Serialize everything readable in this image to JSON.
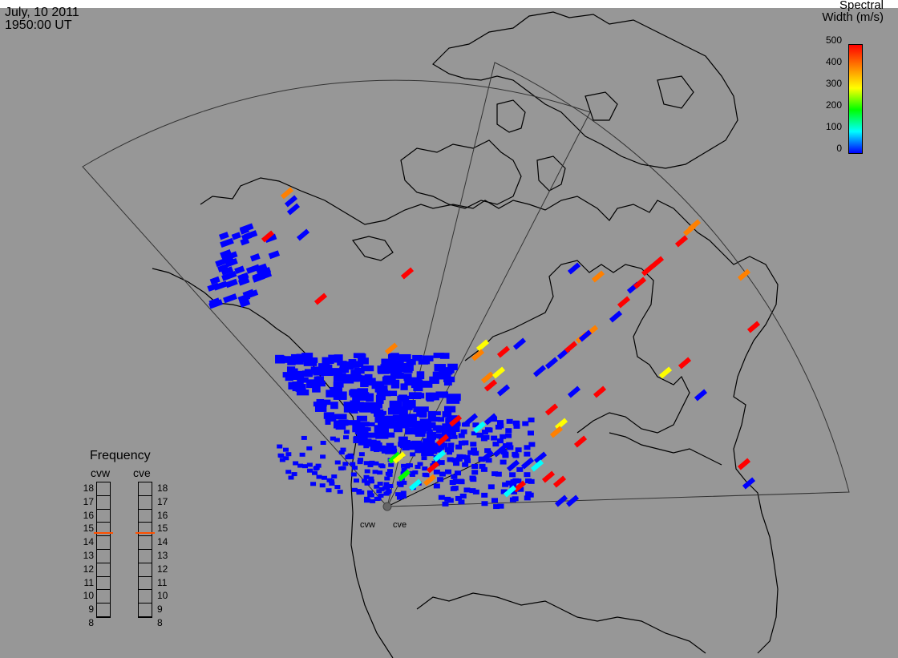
{
  "header": {
    "date": "July, 10 2011",
    "time": "1950:00 UT"
  },
  "colorbar": {
    "title_line1": "Spectral",
    "title_line2": "Width (m/s)",
    "ticks": [
      "500",
      "400",
      "300",
      "200",
      "100",
      "0"
    ],
    "colors": [
      "#0000ff",
      "#00ffff",
      "#00ff00",
      "#ffff00",
      "#ff8000",
      "#ff0000"
    ]
  },
  "frequency_panel": {
    "title": "Frequency",
    "radars": [
      {
        "name": "cvw",
        "frequency_mhz": 14.8
      },
      {
        "name": "cve",
        "frequency_mhz": 14.8
      }
    ],
    "levels": [
      "18",
      "17",
      "16",
      "15",
      "14",
      "13",
      "12",
      "11",
      "10",
      "9",
      "8"
    ],
    "marker_color": "#ff5000"
  },
  "map": {
    "background": "#979797",
    "radar_site_labels": [
      "cvw",
      "cve"
    ]
  }
}
